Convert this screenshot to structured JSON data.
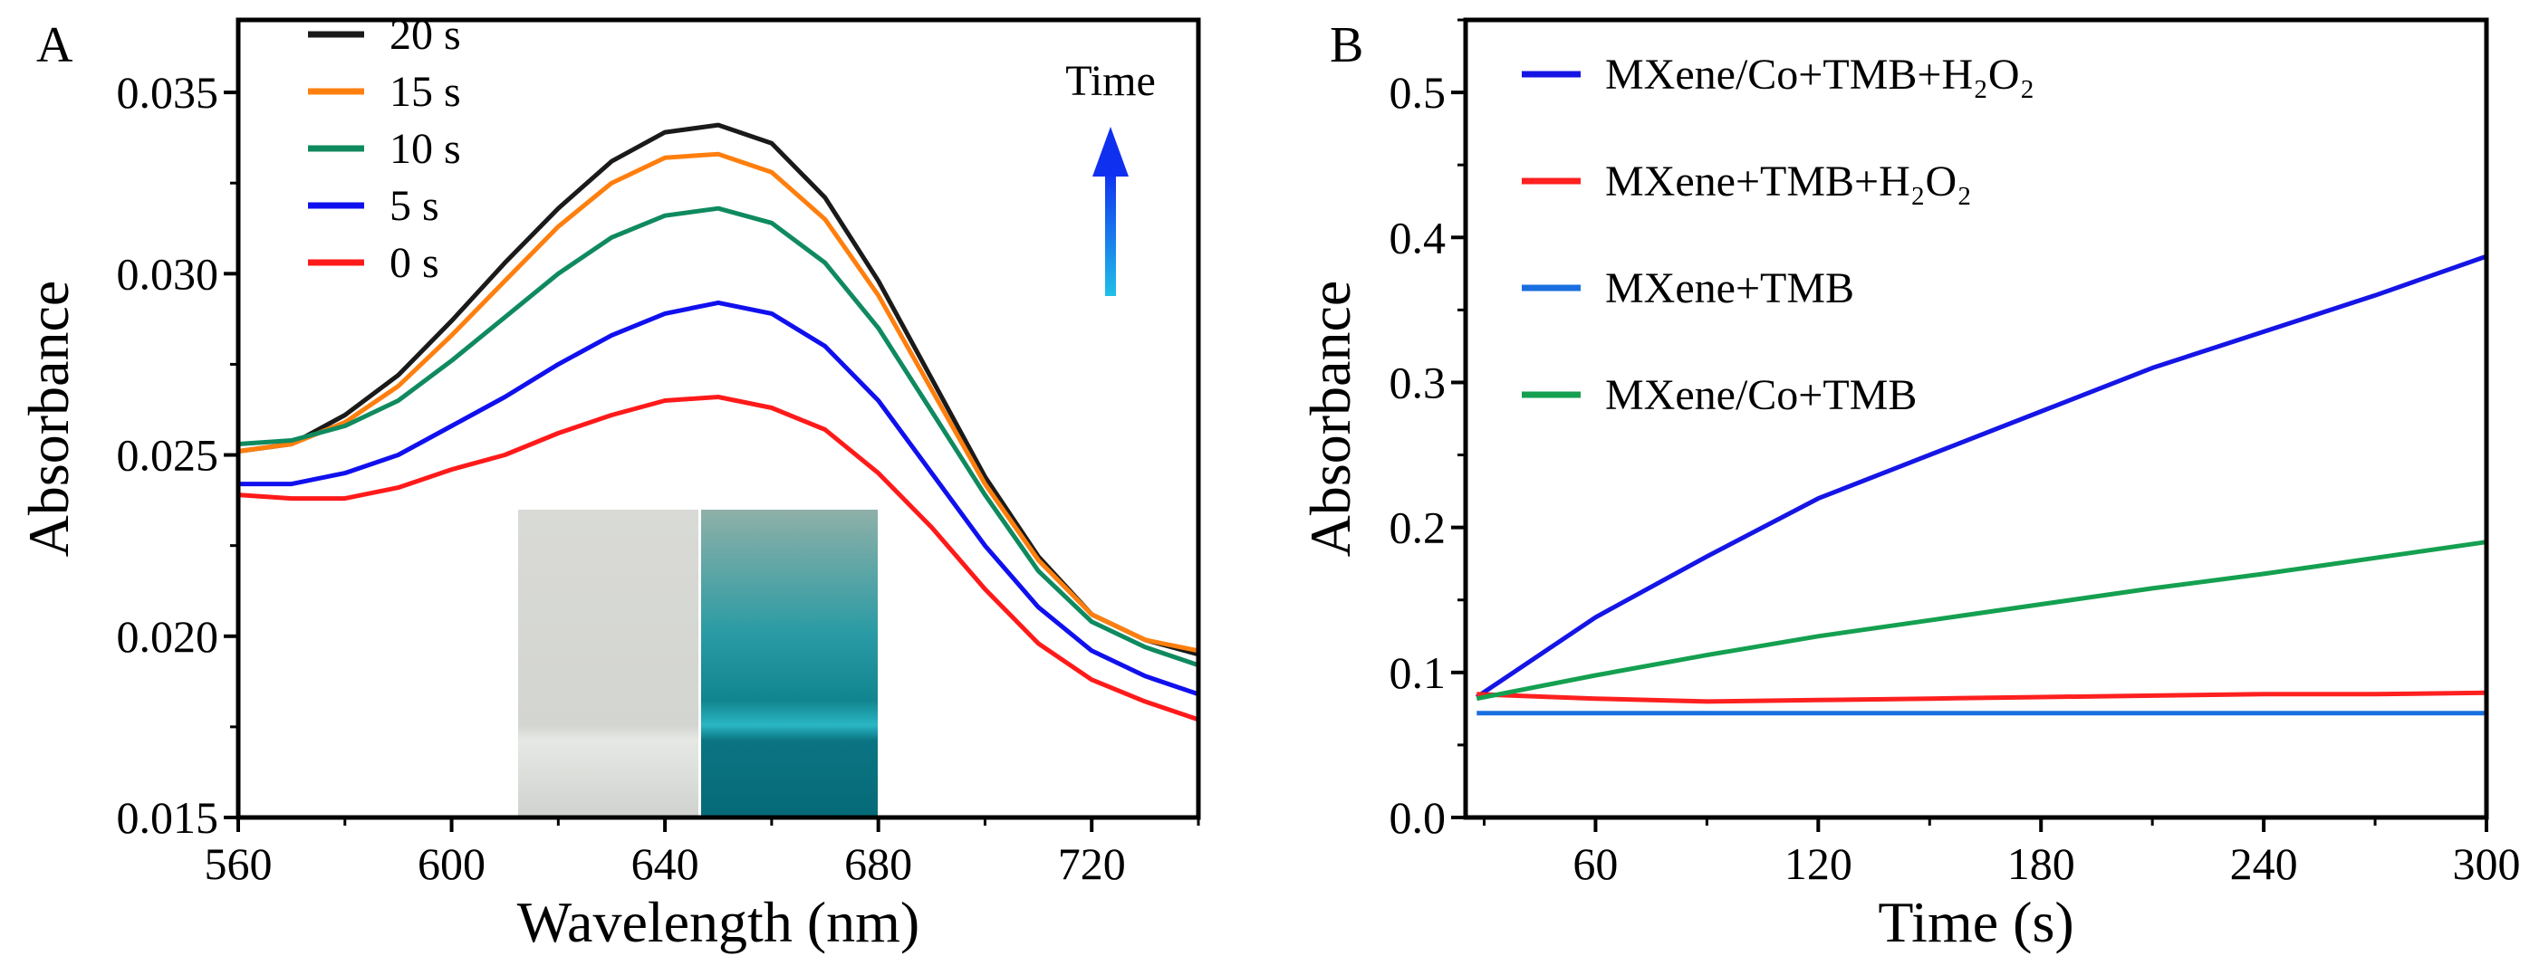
{
  "chart_data": [
    {
      "panel_label": "A",
      "type": "line",
      "title": "",
      "xlabel": "Wavelength (nm)",
      "ylabel": "Absorbance",
      "xlim": [
        560,
        740
      ],
      "ylim": [
        0.015,
        0.037
      ],
      "xticks": [
        560,
        600,
        640,
        680,
        720
      ],
      "yticks": [
        0.015,
        0.02,
        0.025,
        0.03,
        0.035
      ],
      "ytick_labels": [
        "0.015",
        "0.020",
        "0.025",
        "0.030",
        "0.035"
      ],
      "legend_position": "top-left",
      "annotation": "Time",
      "x": [
        560,
        570,
        580,
        590,
        600,
        610,
        620,
        630,
        640,
        650,
        660,
        670,
        680,
        690,
        700,
        710,
        720,
        730,
        740
      ],
      "series": [
        {
          "name": "20 s",
          "color": "#1a1a1a",
          "values": [
            0.0251,
            0.0253,
            0.0261,
            0.0272,
            0.0287,
            0.0303,
            0.0318,
            0.0331,
            0.0339,
            0.0341,
            0.0336,
            0.0321,
            0.0298,
            0.0271,
            0.0244,
            0.0222,
            0.0206,
            0.0199,
            0.0195
          ]
        },
        {
          "name": "15 s",
          "color": "#ff7f0e",
          "values": [
            0.0251,
            0.0253,
            0.0259,
            0.0269,
            0.0283,
            0.0298,
            0.0313,
            0.0325,
            0.0332,
            0.0333,
            0.0328,
            0.0315,
            0.0294,
            0.0268,
            0.0242,
            0.0221,
            0.0206,
            0.0199,
            0.0196
          ]
        },
        {
          "name": "10 s",
          "color": "#0f8a5f",
          "values": [
            0.0253,
            0.0254,
            0.0258,
            0.0265,
            0.0276,
            0.0288,
            0.03,
            0.031,
            0.0316,
            0.0318,
            0.0314,
            0.0303,
            0.0285,
            0.0262,
            0.0239,
            0.0218,
            0.0204,
            0.0197,
            0.0192
          ]
        },
        {
          "name": "5 s",
          "color": "#1010ee",
          "values": [
            0.0242,
            0.0242,
            0.0245,
            0.025,
            0.0258,
            0.0266,
            0.0275,
            0.0283,
            0.0289,
            0.0292,
            0.0289,
            0.028,
            0.0265,
            0.0245,
            0.0225,
            0.0208,
            0.0196,
            0.0189,
            0.0184
          ]
        },
        {
          "name": "0 s",
          "color": "#ff1a1a",
          "values": [
            0.0239,
            0.0238,
            0.0238,
            0.0241,
            0.0246,
            0.025,
            0.0256,
            0.0261,
            0.0265,
            0.0266,
            0.0263,
            0.0257,
            0.0245,
            0.023,
            0.0213,
            0.0198,
            0.0188,
            0.0182,
            0.0177
          ]
        }
      ]
    },
    {
      "panel_label": "B",
      "type": "line",
      "title": "",
      "xlabel": "Time (s)",
      "ylabel": "Absorbance",
      "xlim": [
        25,
        300
      ],
      "ylim": [
        0.0,
        0.55
      ],
      "xticks": [
        60,
        120,
        180,
        240,
        300
      ],
      "yticks": [
        0.0,
        0.1,
        0.2,
        0.3,
        0.4,
        0.5
      ],
      "ytick_labels": [
        "0.0",
        "0.1",
        "0.2",
        "0.3",
        "0.4",
        "0.5"
      ],
      "legend_position": "top-left",
      "x": [
        28,
        60,
        90,
        120,
        150,
        180,
        210,
        240,
        270,
        300
      ],
      "series": [
        {
          "name": "MXene/Co+TMB+H₂O₂",
          "color": "#1515e6",
          "values": [
            0.083,
            0.138,
            0.18,
            0.22,
            0.25,
            0.28,
            0.31,
            0.335,
            0.36,
            0.387
          ]
        },
        {
          "name": "MXene+TMB+H₂O₂",
          "color": "#ff2020",
          "values": [
            0.085,
            0.082,
            0.08,
            0.081,
            0.082,
            0.083,
            0.084,
            0.085,
            0.085,
            0.086
          ]
        },
        {
          "name": "MXene+TMB",
          "color": "#1a6fe0",
          "values": [
            0.072,
            0.072,
            0.072,
            0.072,
            0.072,
            0.072,
            0.072,
            0.072,
            0.072,
            0.072
          ]
        },
        {
          "name": "MXene/Co+TMB",
          "color": "#14a050",
          "values": [
            0.082,
            0.098,
            0.112,
            0.125,
            0.136,
            0.147,
            0.158,
            0.168,
            0.179,
            0.19
          ]
        }
      ]
    }
  ]
}
